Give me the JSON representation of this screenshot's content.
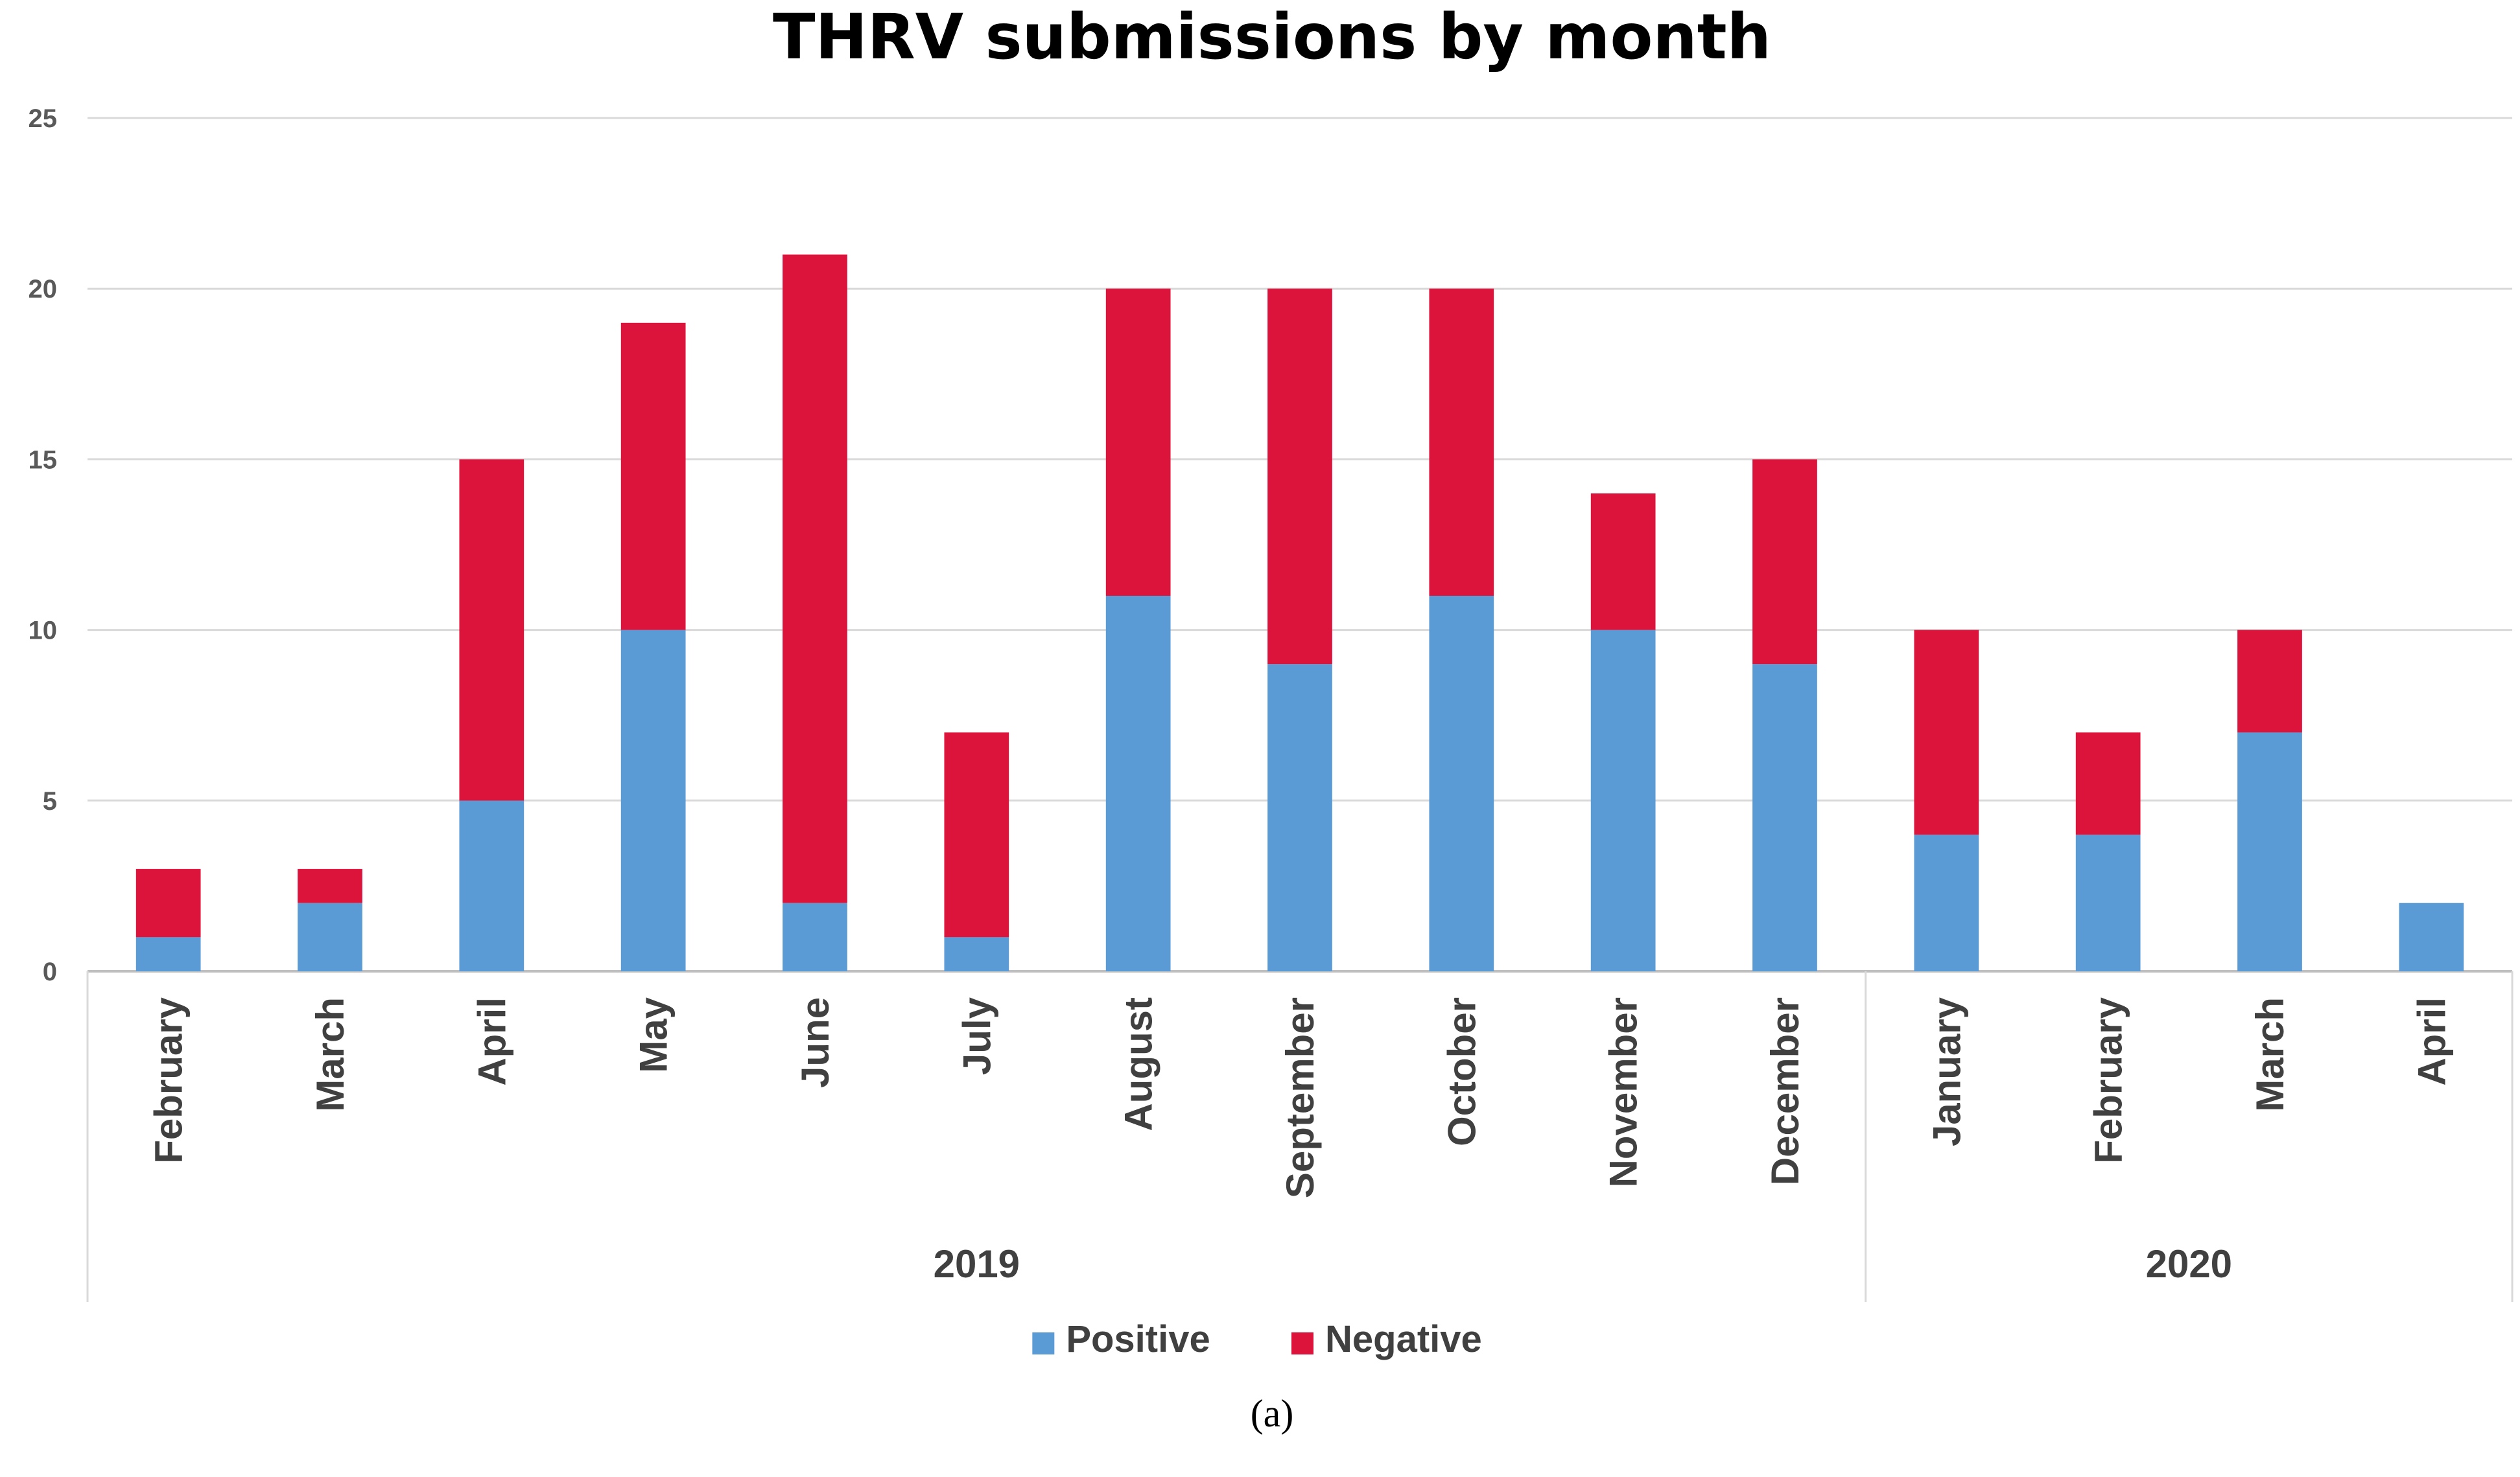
{
  "chart_data": {
    "type": "bar",
    "stacked": true,
    "title": "THRV submissions by month",
    "xlabel": "",
    "ylabel": "",
    "ylim": [
      0,
      25
    ],
    "yticks": [
      "0",
      "5",
      "10",
      "15",
      "20",
      "25"
    ],
    "grid": true,
    "legend_position": "bottom",
    "categories": [
      "February",
      "March",
      "April",
      "May",
      "June",
      "July",
      "August",
      "September",
      "October",
      "November",
      "December",
      "January",
      "February",
      "March",
      "April"
    ],
    "groups": [
      {
        "label": "2019",
        "count": 11
      },
      {
        "label": "2020",
        "count": 4
      }
    ],
    "series": [
      {
        "name": "Positive",
        "color": "#5B9BD5",
        "values": [
          1,
          2,
          5,
          10,
          2,
          1,
          11,
          9,
          11,
          10,
          9,
          4,
          4,
          7,
          2
        ]
      },
      {
        "name": "Negative",
        "color": "#DC143C",
        "values": [
          2,
          1,
          10,
          9,
          19,
          6,
          9,
          11,
          9,
          4,
          6,
          6,
          3,
          3,
          0
        ]
      }
    ]
  },
  "caption": "(a)"
}
